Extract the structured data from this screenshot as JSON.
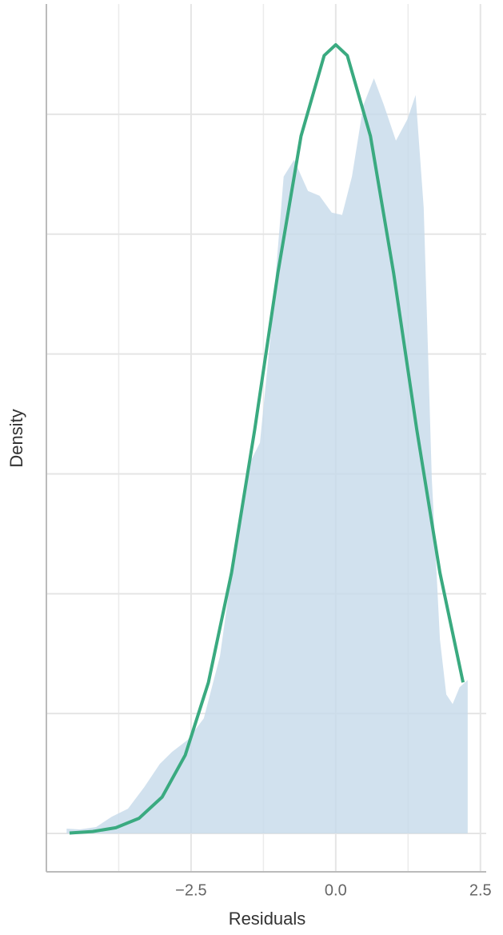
{
  "chart_data": {
    "type": "density",
    "x_label": "Residuals",
    "y_label": "Density",
    "xlim": [
      -5.0,
      2.6
    ],
    "ylim": [
      -0.016,
      0.346
    ],
    "xticks": [
      {
        "value": -2.5,
        "label": "−2.5"
      },
      {
        "value": 0,
        "label": "0.0"
      },
      {
        "value": 2.5,
        "label": "2.5"
      }
    ],
    "xminor": [
      -3.75,
      -1.25,
      1.25
    ],
    "yticks": [
      0,
      0.05,
      0.1,
      0.15,
      0.2,
      0.25,
      0.3
    ],
    "grid": true,
    "density": {
      "color": "#c6d9ea",
      "x": [
        -4.65,
        -4.42,
        -4.14,
        -3.87,
        -3.59,
        -3.31,
        -3.04,
        -2.83,
        -2.56,
        -2.28,
        -2.0,
        -1.73,
        -1.52,
        -1.31,
        -1.1,
        -0.9,
        -0.72,
        -0.48,
        -0.28,
        -0.07,
        0.11,
        0.28,
        0.48,
        0.66,
        0.83,
        1.04,
        1.24,
        1.38,
        1.52,
        1.66,
        1.8,
        1.91,
        2.02,
        2.14,
        2.28
      ],
      "values": [
        0.002,
        0.0017,
        0.0027,
        0.007,
        0.0103,
        0.0193,
        0.029,
        0.034,
        0.039,
        0.048,
        0.074,
        0.121,
        0.153,
        0.163,
        0.214,
        0.274,
        0.281,
        0.268,
        0.266,
        0.259,
        0.258,
        0.274,
        0.304,
        0.315,
        0.304,
        0.289,
        0.298,
        0.308,
        0.261,
        0.148,
        0.081,
        0.058,
        0.054,
        0.061,
        0.064
      ]
    },
    "normal_curve": {
      "color": "#3aaa80",
      "x": [
        -4.6,
        -4.2,
        -3.8,
        -3.4,
        -3.0,
        -2.6,
        -2.2,
        -1.8,
        -1.4,
        -1.0,
        -0.6,
        -0.2,
        0.0,
        0.2,
        0.6,
        1.0,
        1.4,
        1.8,
        2.2
      ],
      "values": [
        0.0002,
        0.0008,
        0.0024,
        0.0063,
        0.0152,
        0.0327,
        0.063,
        0.1088,
        0.1685,
        0.2338,
        0.2909,
        0.3245,
        0.329,
        0.3245,
        0.2909,
        0.2338,
        0.1685,
        0.1088,
        0.063
      ]
    }
  }
}
